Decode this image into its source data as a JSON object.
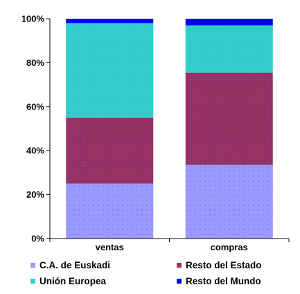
{
  "chart_data": {
    "type": "bar",
    "stacked": true,
    "percent": true,
    "categories": [
      "ventas",
      "compras"
    ],
    "series": [
      {
        "name": "C.A. de Euskadi",
        "values": [
          25,
          33.5
        ],
        "color": "#9999ff"
      },
      {
        "name": "Resto del Estado",
        "values": [
          30,
          42
        ],
        "color": "#993366"
      },
      {
        "name": "Unión Europea",
        "values": [
          43,
          21.5
        ],
        "color": "#33cccc"
      },
      {
        "name": "Resto del Mundo",
        "values": [
          2,
          3
        ],
        "color": "#0000ff"
      }
    ],
    "ylim": [
      0,
      100
    ],
    "yticks": [
      "0%",
      "20%",
      "40%",
      "60%",
      "80%",
      "100%"
    ],
    "ytick_values": [
      0,
      20,
      40,
      60,
      80,
      100
    ],
    "grid": false,
    "legend_position": "bottom"
  }
}
